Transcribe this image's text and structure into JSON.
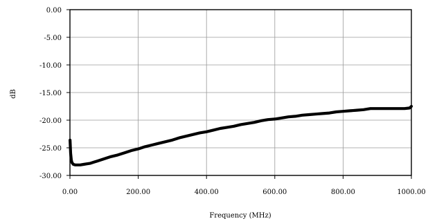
{
  "chart_data": {
    "type": "line",
    "title": "",
    "xlabel": "Frequency (MHz)",
    "ylabel": "dB",
    "xlim": [
      0,
      1000
    ],
    "ylim": [
      -30,
      0
    ],
    "x_ticks": [
      0,
      200,
      400,
      600,
      800,
      1000
    ],
    "x_tick_labels": [
      "0.00",
      "200.00",
      "400.00",
      "600.00",
      "800.00",
      "1000.00"
    ],
    "y_ticks": [
      0,
      -5,
      -10,
      -15,
      -20,
      -25,
      -30
    ],
    "y_tick_labels": [
      "0.00",
      "-5.00",
      "-10.00",
      "-15.00",
      "-20.00",
      "-25.00",
      "-30.00"
    ],
    "grid": true,
    "legend": "none",
    "series": [
      {
        "color": "#000000",
        "x": [
          0.3,
          2,
          4,
          6,
          10,
          15,
          20,
          30,
          40,
          50,
          60,
          70,
          80,
          100,
          120,
          140,
          160,
          180,
          200,
          220,
          240,
          260,
          280,
          300,
          320,
          340,
          360,
          380,
          400,
          420,
          440,
          460,
          480,
          500,
          520,
          540,
          560,
          580,
          600,
          620,
          640,
          660,
          680,
          700,
          720,
          740,
          760,
          780,
          800,
          820,
          840,
          860,
          880,
          900,
          920,
          940,
          960,
          980,
          995,
          1000
        ],
        "y": [
          -23.6,
          -26.0,
          -27.2,
          -27.7,
          -28.0,
          -28.1,
          -28.1,
          -28.1,
          -28.0,
          -27.9,
          -27.8,
          -27.6,
          -27.4,
          -27.0,
          -26.6,
          -26.3,
          -25.9,
          -25.5,
          -25.2,
          -24.8,
          -24.5,
          -24.2,
          -23.9,
          -23.6,
          -23.2,
          -22.9,
          -22.6,
          -22.3,
          -22.1,
          -21.8,
          -21.5,
          -21.3,
          -21.1,
          -20.8,
          -20.6,
          -20.4,
          -20.1,
          -19.9,
          -19.8,
          -19.6,
          -19.4,
          -19.3,
          -19.1,
          -19.0,
          -18.9,
          -18.8,
          -18.7,
          -18.5,
          -18.4,
          -18.3,
          -18.2,
          -18.1,
          -17.9,
          -17.9,
          -17.9,
          -17.9,
          -17.9,
          -17.9,
          -17.8,
          -17.5
        ]
      }
    ]
  }
}
